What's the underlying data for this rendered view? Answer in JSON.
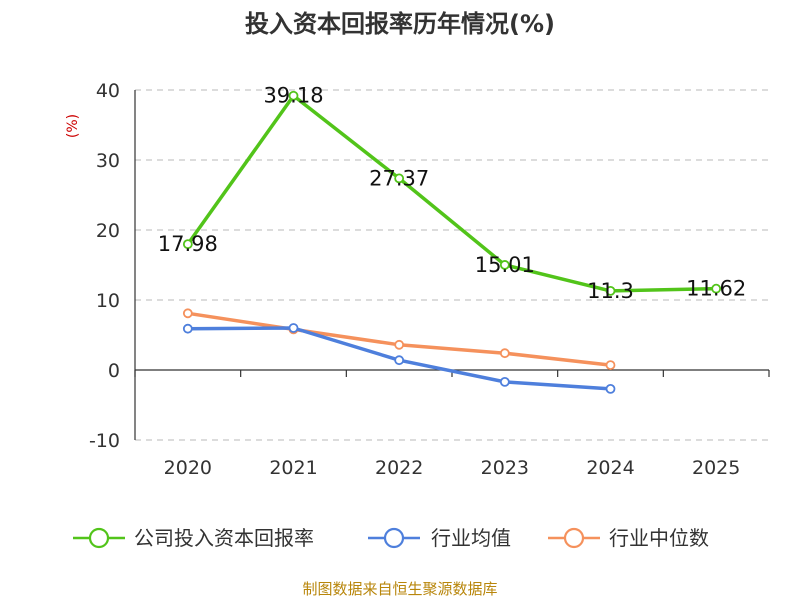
{
  "chart_data": {
    "type": "line",
    "title": "投入资本回报率历年情况(%)",
    "ylabel": "(%)",
    "categories": [
      "2020",
      "2021",
      "2022",
      "2023",
      "2024",
      "2025"
    ],
    "yticks": [
      "40",
      "30",
      "20",
      "10",
      "0",
      "-10"
    ],
    "ylim": [
      -10,
      40
    ],
    "grid": true,
    "legend_position": "bottom",
    "series": [
      {
        "name": "公司投入资本回报率",
        "color": "#52c41a",
        "values": [
          17.98,
          39.18,
          27.37,
          15.01,
          11.3,
          11.62
        ],
        "labels": [
          "17.98",
          "39.18",
          "27.37",
          "15.01",
          "11.3",
          "11.62"
        ]
      },
      {
        "name": "行业均值",
        "color": "#4e7fdc",
        "values": [
          5.9,
          6.0,
          1.4,
          -1.7,
          -2.7,
          null
        ]
      },
      {
        "name": "行业中位数",
        "color": "#f5915c",
        "values": [
          8.1,
          5.8,
          3.6,
          2.4,
          0.7,
          null
        ]
      }
    ]
  },
  "source": "制图数据来自恒生聚源数据库"
}
